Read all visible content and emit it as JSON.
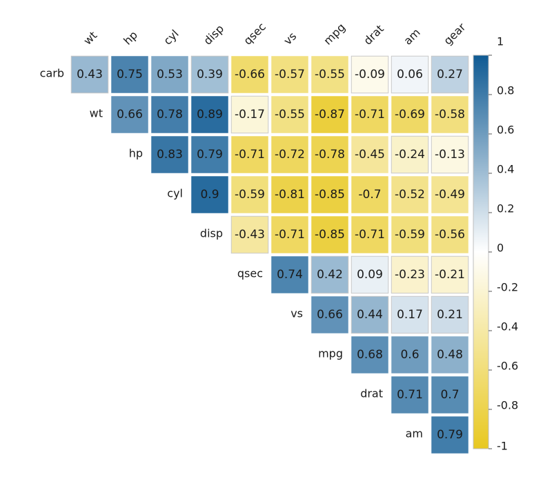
{
  "chart_data": {
    "type": "heatmap",
    "title": "",
    "layout": "upper-triangle correlation matrix",
    "columns": [
      "wt",
      "hp",
      "cyl",
      "disp",
      "qsec",
      "vs",
      "mpg",
      "drat",
      "am",
      "gear"
    ],
    "rows": [
      {
        "label": "carb",
        "start": 0,
        "values": [
          0.43,
          0.75,
          0.53,
          0.39,
          -0.66,
          -0.57,
          -0.55,
          -0.09,
          0.06,
          0.27
        ]
      },
      {
        "label": "wt",
        "start": 1,
        "values": [
          0.66,
          0.78,
          0.89,
          -0.17,
          -0.55,
          -0.87,
          -0.71,
          -0.69,
          -0.58
        ]
      },
      {
        "label": "hp",
        "start": 2,
        "values": [
          0.83,
          0.79,
          -0.71,
          -0.72,
          -0.78,
          -0.45,
          -0.24,
          -0.13
        ]
      },
      {
        "label": "cyl",
        "start": 3,
        "values": [
          0.9,
          -0.59,
          -0.81,
          -0.85,
          -0.7,
          -0.52,
          -0.49
        ]
      },
      {
        "label": "disp",
        "start": 4,
        "values": [
          -0.43,
          -0.71,
          -0.85,
          -0.71,
          -0.59,
          -0.56
        ]
      },
      {
        "label": "qsec",
        "start": 5,
        "values": [
          0.74,
          0.42,
          0.09,
          -0.23,
          -0.21
        ]
      },
      {
        "label": "vs",
        "start": 6,
        "values": [
          0.66,
          0.44,
          0.17,
          0.21
        ]
      },
      {
        "label": "mpg",
        "start": 7,
        "values": [
          0.68,
          0.6,
          0.48
        ]
      },
      {
        "label": "drat",
        "start": 8,
        "values": [
          0.71,
          0.7
        ]
      },
      {
        "label": "am",
        "start": 9,
        "values": [
          0.79
        ]
      }
    ],
    "colorbar": {
      "ticks": [
        1,
        0.8,
        0.6,
        0.4,
        0.2,
        0,
        -0.2,
        -0.4,
        -0.6,
        -0.8,
        -1
      ],
      "tick_labels": [
        "1",
        "0.8",
        "0.6",
        "0.4",
        "0.2",
        "0",
        "-0.2",
        "-0.4",
        "-0.6",
        "-0.8",
        "-1"
      ],
      "range": [
        -1,
        1
      ]
    },
    "colors": {
      "positive": "#0f5a93",
      "neutral": "#ffffff",
      "negative": "#e8c820",
      "cell_border": "#c8c8c8"
    }
  }
}
